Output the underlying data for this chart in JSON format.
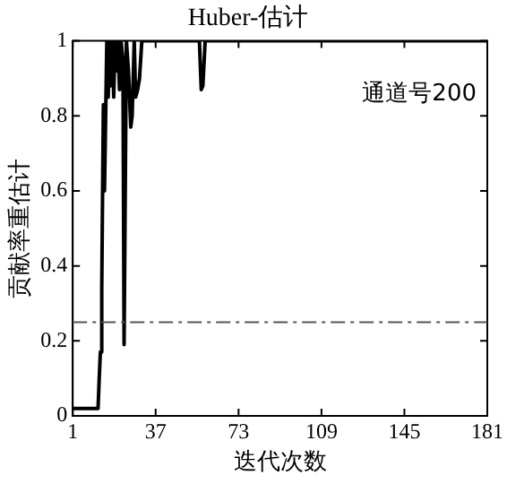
{
  "chart_data": {
    "type": "line",
    "title": "Huber-估计",
    "xlabel": "迭代次数",
    "ylabel": "贡献率重估计",
    "annotations": [
      "通道号200"
    ],
    "xlim": [
      1,
      181
    ],
    "xticks": [
      1,
      37,
      73,
      109,
      145,
      181
    ],
    "ylim": [
      0,
      1
    ],
    "yticks": [
      0,
      0.2,
      0.4,
      0.6,
      0.8,
      1
    ],
    "grid": false,
    "legend": false,
    "marker": "none",
    "line_style": "solid",
    "ref_lines": [
      {
        "axis": "y",
        "value": 0.25,
        "color": "#555555",
        "line_style": "dashdot"
      }
    ],
    "series": [
      {
        "color": "#000000",
        "x": [
          1,
          12,
          12.5,
          13,
          13.6,
          14.3,
          14.8,
          15.3,
          15.8,
          16.4,
          17,
          17.6,
          18.2,
          18.8,
          19.4,
          20,
          20.6,
          21.3,
          22,
          22.8,
          23.3,
          23.8,
          24.3,
          25.2,
          26.2,
          26.8,
          27.7,
          28.3,
          29.2,
          30,
          31,
          56,
          56.8,
          57.5,
          58.5,
          181
        ],
        "values": [
          0.02,
          0.02,
          0.1,
          0.17,
          0.34,
          0.83,
          0.6,
          0.6,
          1,
          0.85,
          1,
          0.88,
          1,
          0.85,
          1,
          0.92,
          1,
          0.87,
          1,
          0.95,
          0.19,
          0.19,
          1,
          0.92,
          0.77,
          0.8,
          1,
          0.85,
          0.87,
          0.9,
          1,
          1,
          0.87,
          0.88,
          1,
          1
        ]
      }
    ]
  }
}
